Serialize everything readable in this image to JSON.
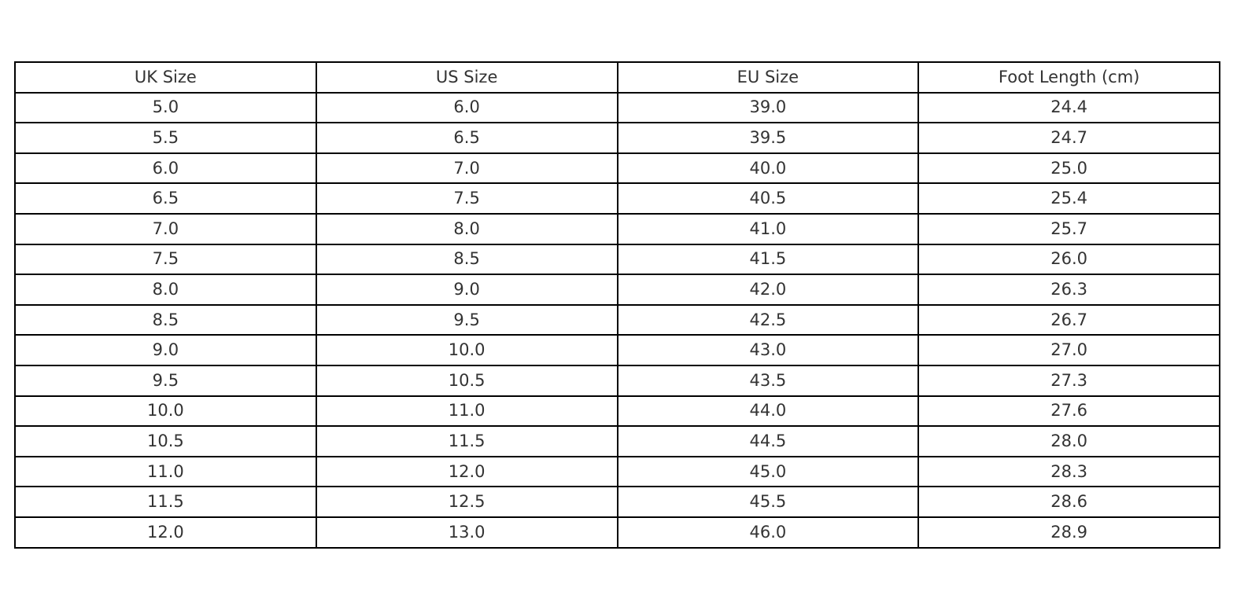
{
  "chart_data": {
    "type": "table",
    "columns": [
      "UK Size",
      "US Size",
      "EU Size",
      "Foot Length (cm)"
    ],
    "rows": [
      [
        "5.0",
        "6.0",
        "39.0",
        "24.4"
      ],
      [
        "5.5",
        "6.5",
        "39.5",
        "24.7"
      ],
      [
        "6.0",
        "7.0",
        "40.0",
        "25.0"
      ],
      [
        "6.5",
        "7.5",
        "40.5",
        "25.4"
      ],
      [
        "7.0",
        "8.0",
        "41.0",
        "25.7"
      ],
      [
        "7.5",
        "8.5",
        "41.5",
        "26.0"
      ],
      [
        "8.0",
        "9.0",
        "42.0",
        "26.3"
      ],
      [
        "8.5",
        "9.5",
        "42.5",
        "26.7"
      ],
      [
        "9.0",
        "10.0",
        "43.0",
        "27.0"
      ],
      [
        "9.5",
        "10.5",
        "43.5",
        "27.3"
      ],
      [
        "10.0",
        "11.0",
        "44.0",
        "27.6"
      ],
      [
        "10.5",
        "11.5",
        "44.5",
        "28.0"
      ],
      [
        "11.0",
        "12.0",
        "45.0",
        "28.3"
      ],
      [
        "11.5",
        "12.5",
        "45.5",
        "28.6"
      ],
      [
        "12.0",
        "13.0",
        "46.0",
        "28.9"
      ]
    ],
    "border_color": "#000000",
    "text_color": "#333333"
  }
}
